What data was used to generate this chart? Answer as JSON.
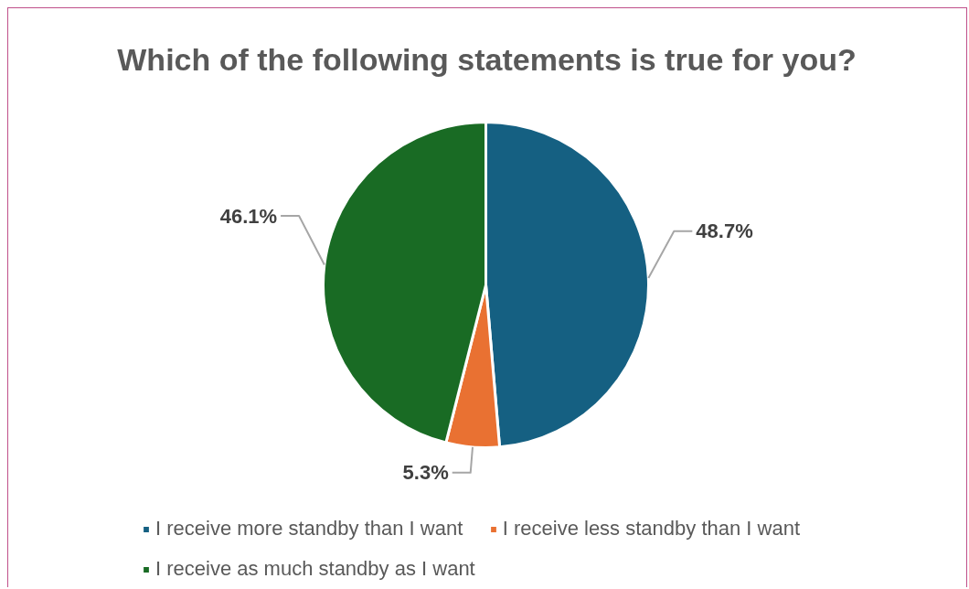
{
  "chart_data": {
    "type": "pie",
    "title": "Which of the following statements is true for you?",
    "categories": [
      "I receive more standby than I want",
      "I receive less standby than I want",
      "I receive as much standby as I want"
    ],
    "values": [
      48.7,
      5.3,
      46.1
    ],
    "colors": [
      "#156082",
      "#e97132",
      "#196b24"
    ],
    "value_labels": [
      "48.7%",
      "5.3%",
      "46.1%"
    ],
    "legend": "bottom"
  }
}
